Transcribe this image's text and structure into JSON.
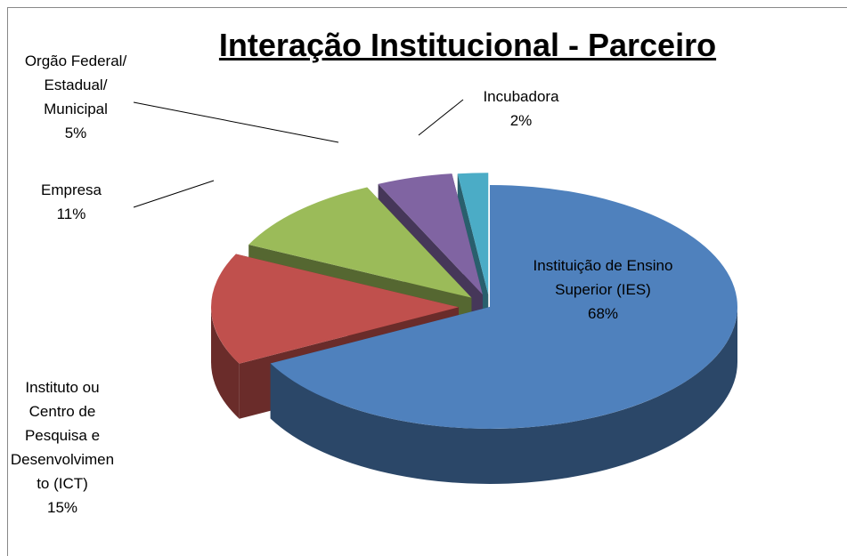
{
  "chart_data": {
    "type": "pie",
    "title": "Interação Institucional - Parceiro",
    "categories": [
      "Instituição de Ensino Superior (IES)",
      "Instituto ou Centro de Pesquisa e Desenvolvimento (ICT)",
      "Empresa",
      "Orgão Federal/ Estadual/ Municipal",
      "Incubadora"
    ],
    "values": [
      68,
      15,
      11,
      5,
      2
    ],
    "value_labels": [
      "68%",
      "15%",
      "11%",
      "5%",
      "2%"
    ],
    "colors": [
      "#4f81bd",
      "#c0504d",
      "#9bbb59",
      "#8064a2",
      "#4bacc6"
    ]
  }
}
